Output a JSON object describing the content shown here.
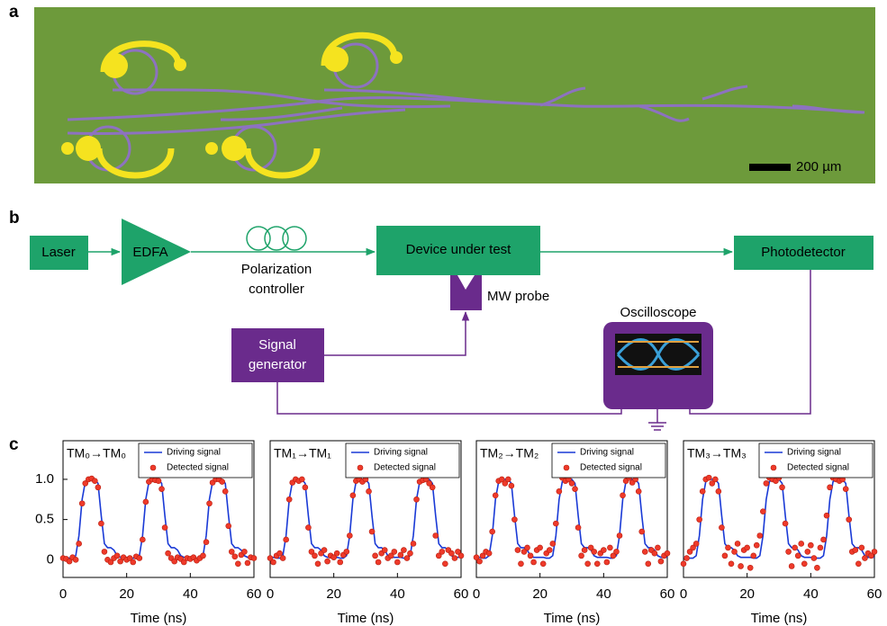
{
  "panel_labels": [
    "a",
    "b",
    "c"
  ],
  "micrograph": {
    "scale_bar": "200 µm"
  },
  "diagram": {
    "laser": "Laser",
    "edfa": "EDFA",
    "polarization_controller": [
      "Polarization",
      "controller"
    ],
    "device": "Device under test",
    "photodetector": "Photodetector",
    "mw_probe": "MW probe",
    "oscilloscope": "Oscilloscope",
    "signal_generator": [
      "Signal",
      "generator"
    ]
  },
  "chart_data": [
    {
      "type": "line",
      "annotation": "TM₀→TM₀",
      "xlabel": "Time (ns)",
      "x": [
        0,
        1,
        2,
        3,
        4,
        5,
        6,
        7,
        8,
        9,
        10,
        11,
        12,
        13,
        14,
        15,
        16,
        17,
        18,
        19,
        20,
        21,
        22,
        23,
        24,
        25,
        26,
        27,
        28,
        29,
        30,
        31,
        32,
        33,
        34,
        35,
        36,
        37,
        38,
        39,
        40,
        41,
        42,
        43,
        44,
        45,
        46,
        47,
        48,
        49,
        50,
        51,
        52,
        53,
        54,
        55,
        56,
        57,
        58,
        59,
        60
      ],
      "xlim": [
        0,
        60
      ],
      "xticks": [
        0,
        20,
        40,
        60
      ],
      "ylim": [
        -0.22,
        1.48
      ],
      "yticks": [
        0,
        0.5,
        {
          "value": 1,
          "label": "1.0"
        }
      ],
      "series": [
        {
          "name": "Driving signal",
          "color": "#1a3ad6",
          "mode": "line",
          "values": [
            0.03,
            0.03,
            0.02,
            0.02,
            0.05,
            0.3,
            0.75,
            0.97,
            1,
            1,
            1,
            0.95,
            0.55,
            0.2,
            0.15,
            0.15,
            0.12,
            0.05,
            0.03,
            0.03,
            0.03,
            0.03,
            0.02,
            0.02,
            0.05,
            0.3,
            0.75,
            0.97,
            1,
            1,
            1,
            0.95,
            0.55,
            0.2,
            0.15,
            0.15,
            0.12,
            0.05,
            0.03,
            0.03,
            0.03,
            0.03,
            0.02,
            0.02,
            0.05,
            0.3,
            0.75,
            0.97,
            1,
            1,
            1,
            0.95,
            0.55,
            0.2,
            0.15,
            0.15,
            0.12,
            0.05,
            0.03,
            0.03,
            0.03
          ]
        },
        {
          "name": "Detected signal",
          "color": "#ee3a2a",
          "mode": "markers",
          "values": [
            0.02,
            0.01,
            -0.02,
            0.03,
            0,
            0.2,
            0.7,
            0.95,
            1,
            1.01,
            0.98,
            0.9,
            0.45,
            0.1,
            0,
            -0.03,
            0.02,
            0.05,
            -0.02,
            0.03,
            0,
            0.02,
            -0.03,
            0.04,
            0.02,
            0.25,
            0.72,
            0.97,
            1,
            0.99,
            0.98,
            0.88,
            0.4,
            0.08,
            0.02,
            -0.02,
            0.03,
            0.01,
            -0.03,
            0.02,
            0.01,
            0.03,
            -0.01,
            0.02,
            0.05,
            0.22,
            0.7,
            0.96,
            1,
            1,
            0.97,
            0.85,
            0.42,
            0.1,
            0.04,
            -0.05,
            0.06,
            0.1,
            -0.04,
            0.03,
            0.02
          ]
        }
      ]
    },
    {
      "type": "line",
      "annotation": "TM₁→TM₁",
      "xlabel": "Time (ns)",
      "x": [
        0,
        1,
        2,
        3,
        4,
        5,
        6,
        7,
        8,
        9,
        10,
        11,
        12,
        13,
        14,
        15,
        16,
        17,
        18,
        19,
        20,
        21,
        22,
        23,
        24,
        25,
        26,
        27,
        28,
        29,
        30,
        31,
        32,
        33,
        34,
        35,
        36,
        37,
        38,
        39,
        40,
        41,
        42,
        43,
        44,
        45,
        46,
        47,
        48,
        49,
        50,
        51,
        52,
        53,
        54,
        55,
        56,
        57,
        58,
        59,
        60
      ],
      "xlim": [
        0,
        60
      ],
      "xticks": [
        0,
        20,
        40,
        60
      ],
      "ylim": [
        -0.22,
        1.48
      ],
      "series": [
        {
          "name": "Driving signal",
          "color": "#1a3ad6",
          "mode": "line",
          "values": [
            0.03,
            0.03,
            0.02,
            0.02,
            0.05,
            0.3,
            0.75,
            0.97,
            1,
            1,
            1,
            0.95,
            0.55,
            0.2,
            0.15,
            0.15,
            0.12,
            0.05,
            0.03,
            0.03,
            0.03,
            0.03,
            0.02,
            0.02,
            0.05,
            0.3,
            0.75,
            0.97,
            1,
            1,
            1,
            0.95,
            0.55,
            0.2,
            0.15,
            0.15,
            0.12,
            0.05,
            0.03,
            0.03,
            0.03,
            0.03,
            0.02,
            0.02,
            0.05,
            0.3,
            0.75,
            0.97,
            1,
            1,
            1,
            0.95,
            0.55,
            0.2,
            0.15,
            0.15,
            0.12,
            0.05,
            0.03,
            0.03,
            0.03
          ]
        },
        {
          "name": "Detected signal",
          "color": "#ee3a2a",
          "mode": "markers",
          "values": [
            0.02,
            -0.03,
            0.05,
            0.08,
            0.02,
            0.25,
            0.75,
            0.96,
            1,
            0.98,
            1,
            0.9,
            0.4,
            0.1,
            0.05,
            -0.05,
            0.08,
            0.12,
            -0.02,
            0.05,
            0.03,
            0.08,
            -0.03,
            0.06,
            0.1,
            0.3,
            0.8,
            0.98,
            1,
            0.97,
            1,
            0.85,
            0.35,
            0.05,
            -0.03,
            0.08,
            0.12,
            0.02,
            0.05,
            0.1,
            -0.03,
            0.06,
            0.12,
            0.02,
            0.08,
            0.2,
            0.75,
            0.97,
            0.99,
            1,
            0.95,
            0.9,
            0.3,
            0.05,
            0.1,
            -0.05,
            0.12,
            0.08,
            0.02,
            0.1,
            0.05
          ]
        }
      ]
    },
    {
      "type": "line",
      "annotation": "TM₂→TM₂",
      "xlabel": "Time (ns)",
      "x": [
        0,
        1,
        2,
        3,
        4,
        5,
        6,
        7,
        8,
        9,
        10,
        11,
        12,
        13,
        14,
        15,
        16,
        17,
        18,
        19,
        20,
        21,
        22,
        23,
        24,
        25,
        26,
        27,
        28,
        29,
        30,
        31,
        32,
        33,
        34,
        35,
        36,
        37,
        38,
        39,
        40,
        41,
        42,
        43,
        44,
        45,
        46,
        47,
        48,
        49,
        50,
        51,
        52,
        53,
        54,
        55,
        56,
        57,
        58,
        59,
        60
      ],
      "xlim": [
        0,
        60
      ],
      "xticks": [
        0,
        20,
        40,
        60
      ],
      "ylim": [
        -0.22,
        1.48
      ],
      "series": [
        {
          "name": "Driving signal",
          "color": "#1a3ad6",
          "mode": "line",
          "values": [
            0.03,
            0.03,
            0.02,
            0.02,
            0.05,
            0.3,
            0.75,
            0.97,
            1,
            1,
            1,
            0.95,
            0.55,
            0.2,
            0.15,
            0.15,
            0.12,
            0.05,
            0.03,
            0.03,
            0.03,
            0.03,
            0.02,
            0.02,
            0.05,
            0.3,
            0.75,
            0.97,
            1,
            1,
            1,
            0.95,
            0.55,
            0.2,
            0.15,
            0.15,
            0.12,
            0.05,
            0.03,
            0.03,
            0.03,
            0.03,
            0.02,
            0.02,
            0.05,
            0.3,
            0.75,
            0.97,
            1,
            1,
            1,
            0.95,
            0.55,
            0.2,
            0.15,
            0.15,
            0.12,
            0.05,
            0.03,
            0.03,
            0.03
          ]
        },
        {
          "name": "Detected signal",
          "color": "#ee3a2a",
          "mode": "markers",
          "values": [
            0.03,
            -0.02,
            0.05,
            0.1,
            0.08,
            0.35,
            0.8,
            0.98,
            1,
            0.95,
            1,
            0.92,
            0.5,
            0.12,
            -0.05,
            0.1,
            0.15,
            0.05,
            -0.03,
            0.12,
            0.15,
            -0.05,
            0.08,
            0.12,
            0.2,
            0.45,
            0.85,
            1.02,
            0.98,
            1,
            0.95,
            0.88,
            0.4,
            0.05,
            0.12,
            -0.05,
            0.15,
            0.1,
            -0.05,
            0.08,
            0.12,
            -0.03,
            0.15,
            0.05,
            0.1,
            0.3,
            0.8,
            0.98,
            1.02,
            0.96,
            1,
            0.85,
            0.35,
            0.1,
            -0.05,
            0.12,
            0.08,
            0.15,
            -0.02,
            0.05,
            0.08
          ]
        }
      ]
    },
    {
      "type": "line",
      "annotation": "TM₃→TM₃",
      "xlabel": "Time (ns)",
      "x": [
        0,
        1,
        2,
        3,
        4,
        5,
        6,
        7,
        8,
        9,
        10,
        11,
        12,
        13,
        14,
        15,
        16,
        17,
        18,
        19,
        20,
        21,
        22,
        23,
        24,
        25,
        26,
        27,
        28,
        29,
        30,
        31,
        32,
        33,
        34,
        35,
        36,
        37,
        38,
        39,
        40,
        41,
        42,
        43,
        44,
        45,
        46,
        47,
        48,
        49,
        50,
        51,
        52,
        53,
        54,
        55,
        56,
        57,
        58,
        59,
        60
      ],
      "xlim": [
        0,
        60
      ],
      "xticks": [
        0,
        20,
        40,
        60
      ],
      "ylim": [
        -0.22,
        1.48
      ],
      "series": [
        {
          "name": "Driving signal",
          "color": "#1a3ad6",
          "mode": "line",
          "values": [
            0.03,
            0.03,
            0.02,
            0.02,
            0.05,
            0.3,
            0.75,
            0.97,
            1,
            1,
            1,
            0.95,
            0.55,
            0.2,
            0.15,
            0.15,
            0.12,
            0.05,
            0.03,
            0.03,
            0.03,
            0.03,
            0.02,
            0.02,
            0.05,
            0.3,
            0.75,
            0.97,
            1,
            1,
            1,
            0.95,
            0.55,
            0.2,
            0.15,
            0.15,
            0.12,
            0.05,
            0.03,
            0.03,
            0.03,
            0.03,
            0.02,
            0.02,
            0.05,
            0.3,
            0.75,
            0.97,
            1,
            1,
            1,
            0.95,
            0.55,
            0.2,
            0.15,
            0.15,
            0.12,
            0.05,
            0.03,
            0.03,
            0.03
          ]
        },
        {
          "name": "Detected signal",
          "color": "#ee3a2a",
          "mode": "markers",
          "values": [
            -0.05,
            0.02,
            0.1,
            0.15,
            0.2,
            0.5,
            0.85,
            1,
            1.02,
            0.95,
            1,
            0.85,
            0.4,
            0.05,
            0.15,
            -0.05,
            0.1,
            0.2,
            -0.08,
            0.12,
            0.15,
            -0.1,
            0.05,
            0.18,
            0.3,
            0.6,
            0.95,
            1.02,
            1,
            0.98,
            1.02,
            0.9,
            0.45,
            0.1,
            -0.08,
            0.15,
            0.05,
            0.2,
            -0.05,
            0.1,
            0.18,
            0.02,
            -0.1,
            0.15,
            0.25,
            0.55,
            0.9,
            1.02,
            1,
            0.98,
            1,
            0.88,
            0.5,
            0.1,
            0.12,
            -0.05,
            0.15,
            0.02,
            0.08,
            0.05,
            0.1
          ]
        }
      ]
    }
  ]
}
